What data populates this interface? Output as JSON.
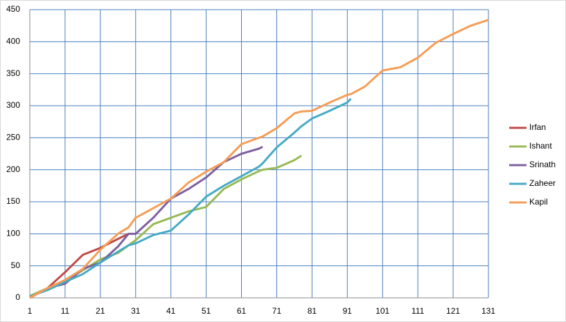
{
  "chart_data": {
    "type": "line",
    "x": [
      1,
      6,
      11,
      16,
      21,
      26,
      29,
      31,
      36,
      41,
      46,
      51,
      56,
      61,
      66,
      67,
      71,
      76,
      78,
      81,
      86,
      91,
      92,
      96,
      101,
      106,
      111,
      116,
      121,
      126,
      131
    ],
    "series": [
      {
        "name": "Irfan",
        "color": "#be4b48",
        "values": [
          0,
          15,
          40,
          67,
          78,
          92,
          100,
          null,
          null,
          null,
          null,
          null,
          null,
          null,
          null,
          null,
          null,
          null,
          null,
          null,
          null,
          null,
          null,
          null,
          null,
          null,
          null,
          null,
          null,
          null,
          null
        ]
      },
      {
        "name": "Ishant",
        "color": "#98b954",
        "values": [
          3,
          15,
          27,
          43,
          60,
          70,
          82,
          90,
          115,
          125,
          135,
          142,
          170,
          185,
          198,
          200,
          203,
          215,
          222,
          null,
          null,
          null,
          null,
          null,
          null,
          null,
          null,
          null,
          null,
          null,
          null
        ]
      },
      {
        "name": "Srinath",
        "color": "#7d60a0",
        "values": [
          0,
          15,
          22,
          45,
          55,
          80,
          100,
          100,
          125,
          155,
          170,
          188,
          212,
          225,
          233,
          236,
          null,
          null,
          null,
          null,
          null,
          null,
          null,
          null,
          null,
          null,
          null,
          null,
          null,
          null,
          null
        ]
      },
      {
        "name": "Zaheer",
        "color": "#46aac5",
        "values": [
          2,
          12,
          25,
          37,
          55,
          72,
          82,
          85,
          98,
          105,
          130,
          158,
          175,
          190,
          205,
          210,
          235,
          258,
          268,
          280,
          292,
          305,
          311,
          null,
          null,
          null,
          null,
          null,
          null,
          null,
          null
        ]
      },
      {
        "name": "Kapil",
        "color": "#f59d56",
        "values": [
          0,
          15,
          28,
          45,
          75,
          100,
          110,
          125,
          140,
          155,
          180,
          197,
          212,
          240,
          250,
          252,
          265,
          288,
          291,
          292,
          305,
          317,
          318,
          330,
          355,
          360,
          375,
          398,
          412,
          425,
          434
        ]
      }
    ],
    "xlim": [
      1,
      131
    ],
    "xticks": [
      1,
      11,
      21,
      31,
      41,
      51,
      61,
      71,
      81,
      91,
      101,
      111,
      121,
      131
    ],
    "ylim": [
      0,
      450
    ],
    "yticks": [
      0,
      50,
      100,
      150,
      200,
      250,
      300,
      350,
      400,
      450
    ],
    "grid": true,
    "legend": "right"
  }
}
